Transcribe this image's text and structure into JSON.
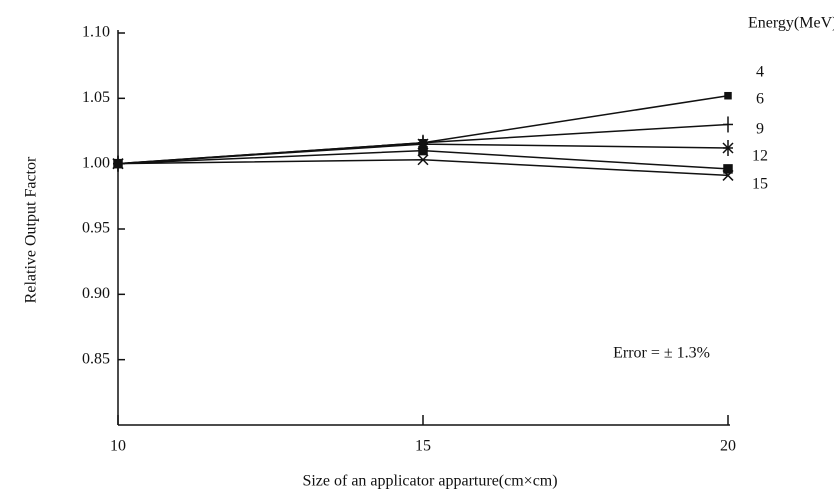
{
  "chart_data": {
    "type": "line",
    "x_label": "Size of an applicator apparture(cm×cm)",
    "y_label": "Relative Output Factor",
    "legend_title": "Energy(MeV)",
    "annotation": "Error = ± 1.3%",
    "x": [
      10,
      15,
      20
    ],
    "xlim": [
      10,
      20
    ],
    "xticks": [
      10,
      15,
      20
    ],
    "ylim": [
      0.8,
      1.1
    ],
    "yticks": [
      {
        "value": 0.85,
        "label": "0.85"
      },
      {
        "value": 0.9,
        "label": "0.90"
      },
      {
        "value": 0.95,
        "label": "0.95"
      },
      {
        "value": 1.0,
        "label": "1.00"
      },
      {
        "value": 1.05,
        "label": "1.05"
      },
      {
        "value": 1.1,
        "label": "1.10"
      }
    ],
    "series": [
      {
        "name": "4",
        "color": "#111111",
        "marker": "square",
        "values": [
          1.0,
          1.016,
          1.052
        ]
      },
      {
        "name": "6",
        "color": "#111111",
        "marker": "plus",
        "values": [
          1.0,
          1.016,
          1.03
        ]
      },
      {
        "name": "9",
        "color": "#111111",
        "marker": "asterisk",
        "values": [
          1.0,
          1.015,
          1.012
        ]
      },
      {
        "name": "12",
        "color": "#111111",
        "marker": "diamond",
        "values": [
          1.0,
          1.01,
          0.996
        ]
      },
      {
        "name": "15",
        "color": "#111111",
        "marker": "x",
        "values": [
          1.0,
          1.003,
          0.991
        ]
      }
    ]
  }
}
